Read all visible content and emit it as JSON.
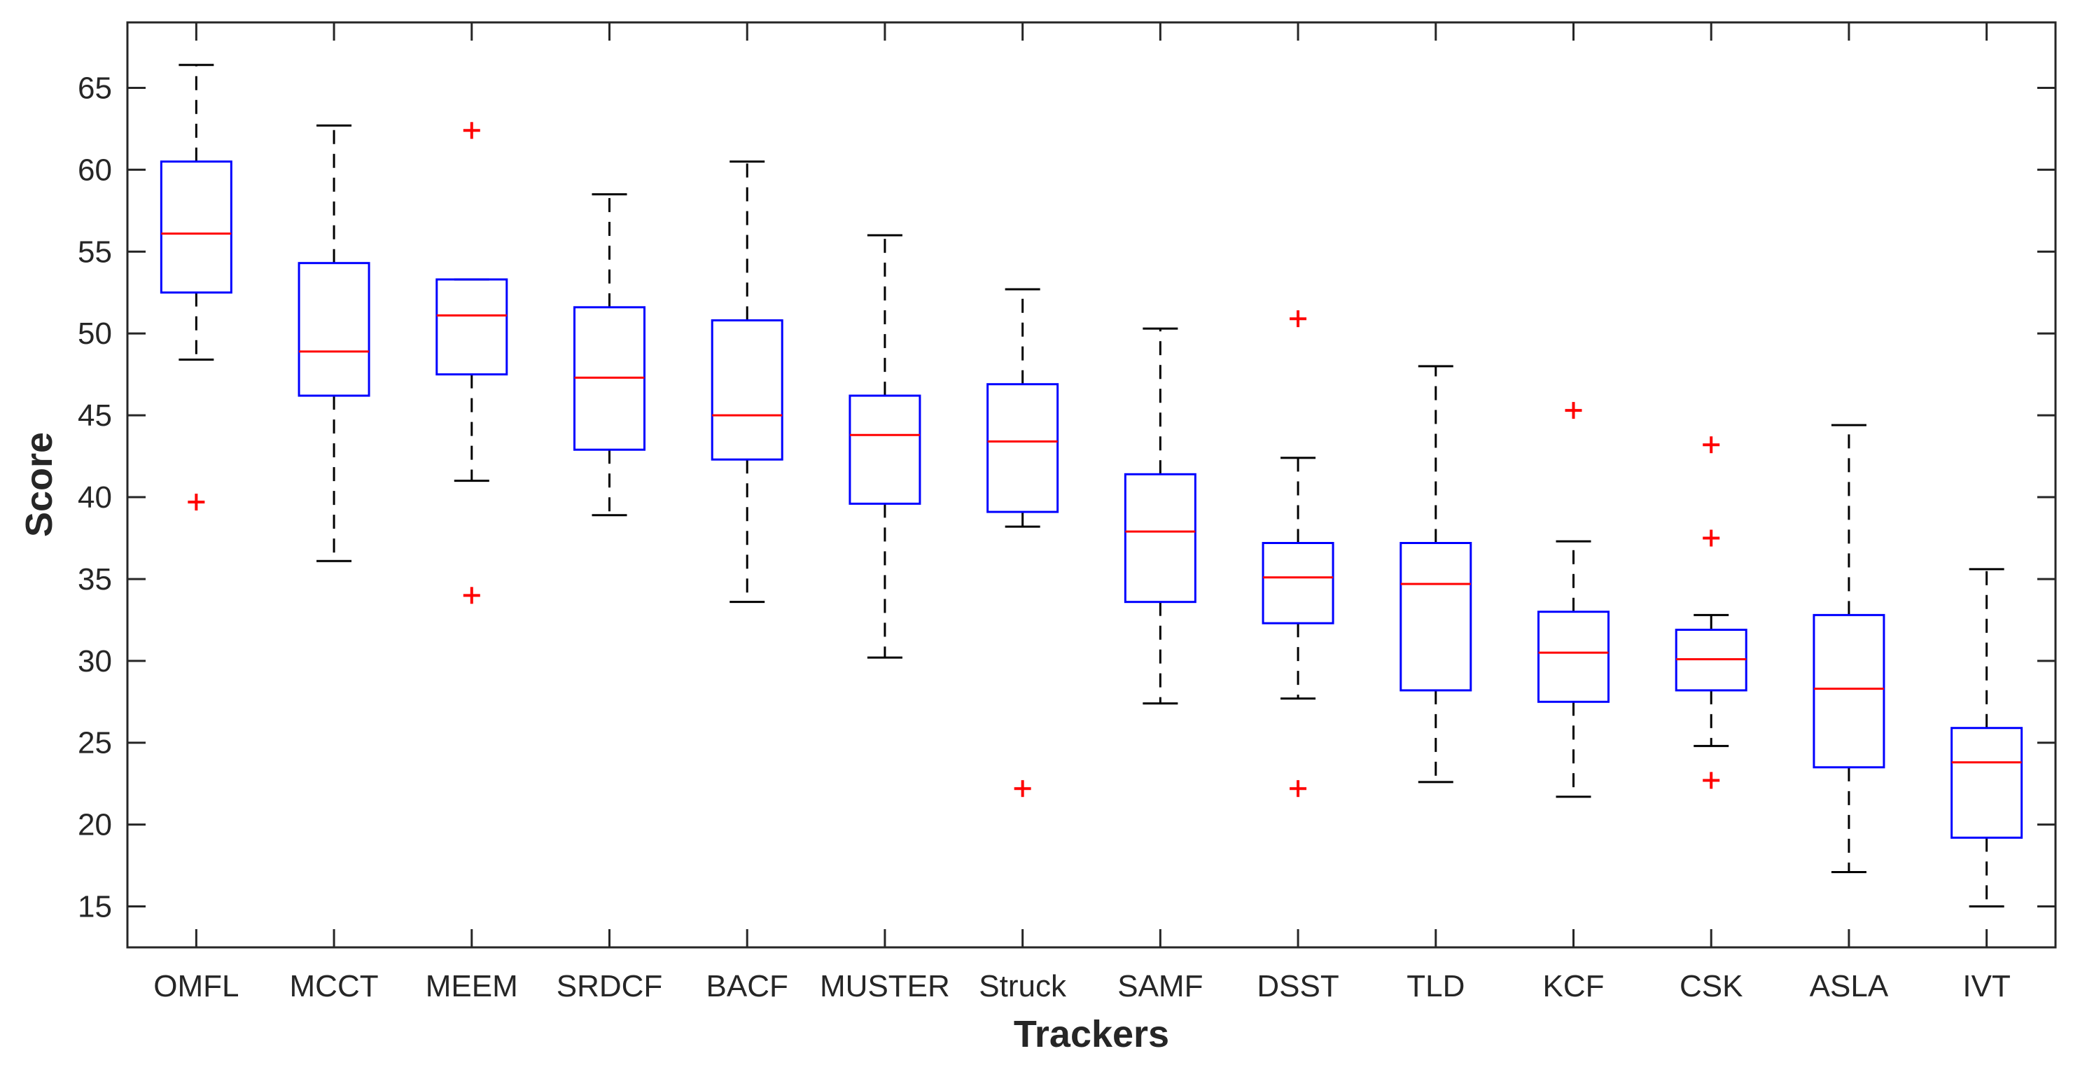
{
  "chart_data": {
    "type": "boxplot",
    "title": "",
    "xlabel": "Trackers",
    "ylabel": "Score",
    "ylim": [
      12.5,
      69
    ],
    "yticks": [
      15,
      20,
      25,
      30,
      35,
      40,
      45,
      50,
      55,
      60,
      65
    ],
    "grid": false,
    "colors": {
      "box": "#0000ff",
      "median": "#ff0000",
      "whisker": "#000000",
      "outlier": "#ff0000",
      "axis": "#262626"
    },
    "series": [
      {
        "name": "OMFL",
        "whisker_low": 48.4,
        "q1": 52.5,
        "median": 56.1,
        "q3": 60.5,
        "whisker_high": 66.4,
        "outliers": [
          39.7
        ]
      },
      {
        "name": "MCCT",
        "whisker_low": 36.1,
        "q1": 46.2,
        "median": 48.9,
        "q3": 54.3,
        "whisker_high": 62.7,
        "outliers": []
      },
      {
        "name": "MEEM",
        "whisker_low": 41.0,
        "q1": 47.5,
        "median": 51.1,
        "q3": 53.3,
        "whisker_high": 53.3,
        "outliers": [
          62.4,
          34.0
        ]
      },
      {
        "name": "SRDCF",
        "whisker_low": 38.9,
        "q1": 42.9,
        "median": 47.3,
        "q3": 51.6,
        "whisker_high": 58.5,
        "outliers": []
      },
      {
        "name": "BACF",
        "whisker_low": 33.6,
        "q1": 42.3,
        "median": 45.0,
        "q3": 50.8,
        "whisker_high": 60.5,
        "outliers": []
      },
      {
        "name": "MUSTER",
        "whisker_low": 30.2,
        "q1": 39.6,
        "median": 43.8,
        "q3": 46.2,
        "whisker_high": 56.0,
        "outliers": []
      },
      {
        "name": "Struck",
        "whisker_low": 38.2,
        "q1": 39.1,
        "median": 43.4,
        "q3": 46.9,
        "whisker_high": 52.7,
        "outliers": [
          22.2
        ]
      },
      {
        "name": "SAMF",
        "whisker_low": 27.4,
        "q1": 33.6,
        "median": 37.9,
        "q3": 41.4,
        "whisker_high": 50.3,
        "outliers": []
      },
      {
        "name": "DSST",
        "whisker_low": 27.7,
        "q1": 32.3,
        "median": 35.1,
        "q3": 37.2,
        "whisker_high": 42.4,
        "outliers": [
          50.9,
          22.2
        ]
      },
      {
        "name": "TLD",
        "whisker_low": 22.6,
        "q1": 28.2,
        "median": 34.7,
        "q3": 37.2,
        "whisker_high": 48.0,
        "outliers": []
      },
      {
        "name": "KCF",
        "whisker_low": 21.7,
        "q1": 27.5,
        "median": 30.5,
        "q3": 33.0,
        "whisker_high": 37.3,
        "outliers": [
          45.3
        ]
      },
      {
        "name": "CSK",
        "whisker_low": 24.8,
        "q1": 28.2,
        "median": 30.1,
        "q3": 31.9,
        "whisker_high": 32.8,
        "outliers": [
          43.2,
          37.5,
          22.7
        ]
      },
      {
        "name": "ASLA",
        "whisker_low": 17.1,
        "q1": 23.5,
        "median": 28.3,
        "q3": 32.8,
        "whisker_high": 44.4,
        "outliers": []
      },
      {
        "name": "IVT",
        "whisker_low": 15.0,
        "q1": 19.2,
        "median": 23.8,
        "q3": 25.9,
        "whisker_high": 35.6,
        "outliers": []
      }
    ]
  }
}
